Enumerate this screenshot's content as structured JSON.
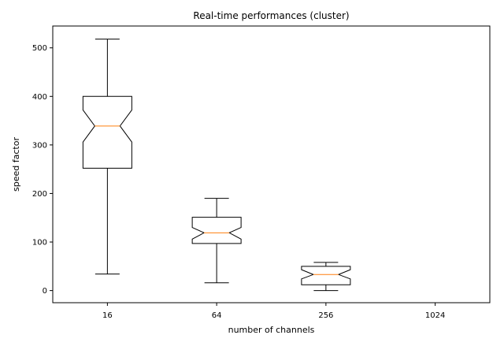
{
  "chart_data": {
    "type": "boxplot",
    "title": "Real-time performances (cluster)",
    "xlabel": "number of channels",
    "ylabel": "speed factor",
    "categories": [
      "16",
      "64",
      "256",
      "1024"
    ],
    "ylim": [
      -25,
      545
    ],
    "yticks": [
      0,
      100,
      200,
      300,
      400,
      500
    ],
    "notched": true,
    "grid": false,
    "colors": {
      "box": "#000000",
      "median": "#ff7f0e"
    },
    "boxes": [
      {
        "category": "16",
        "whisker_low": 34,
        "q1": 252,
        "median": 339,
        "q3": 400,
        "whisker_high": 518,
        "notch_low": 306,
        "notch_high": 372
      },
      {
        "category": "64",
        "whisker_low": 16,
        "q1": 97,
        "median": 119,
        "q3": 151,
        "whisker_high": 190,
        "notch_low": 106,
        "notch_high": 130
      },
      {
        "category": "256",
        "whisker_low": 0,
        "q1": 12,
        "median": 33,
        "q3": 50,
        "whisker_high": 58,
        "notch_low": 24,
        "notch_high": 43
      },
      {
        "category": "1024",
        "whisker_low": null,
        "q1": null,
        "median": null,
        "q3": null,
        "whisker_high": null,
        "notch_low": null,
        "notch_high": null
      }
    ]
  }
}
